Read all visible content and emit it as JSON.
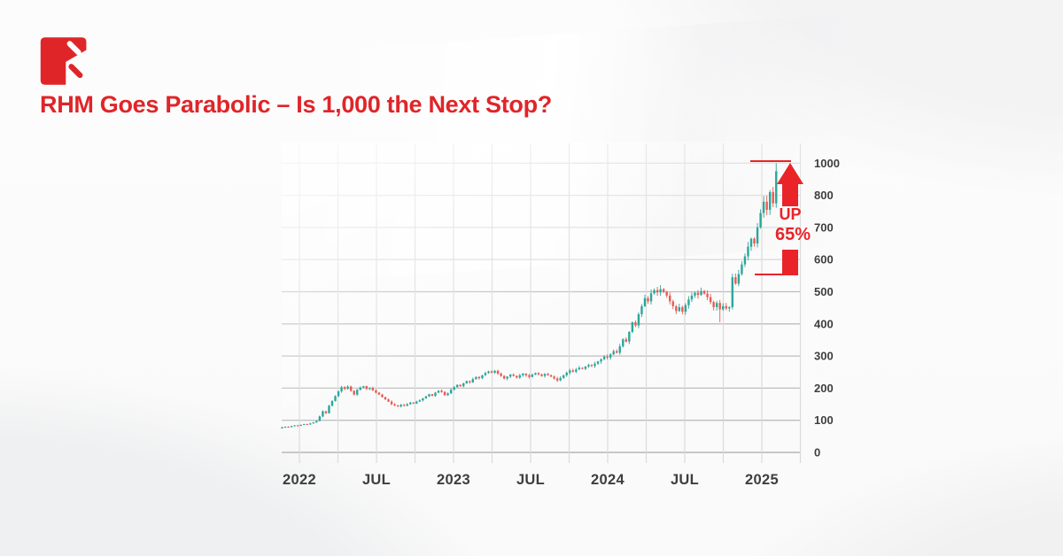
{
  "page": {
    "title": "RHM Goes Parabolic – Is 1,000 the Next Stop?"
  },
  "logo": {
    "name": "brand-mark",
    "color": "#e02529"
  },
  "colors": {
    "title_red": "#e02529",
    "annotation_red": "#ea2328",
    "candle_up": "#2aa79a",
    "candle_down": "#e95b52",
    "axis_text": "#3e3e3e",
    "grid_light": "#dadada",
    "grid_mid": "#bdbdbd",
    "grid_dark": "#a8a8a8"
  },
  "chart_data": {
    "type": "candlestick",
    "title": "RHM Goes Parabolic – Is 1,000 the Next Stop?",
    "xlabel": "",
    "ylabel": "",
    "x_labels": [
      "2022",
      "JUL",
      "2023",
      "JUL",
      "2024",
      "JUL",
      "2025"
    ],
    "y_labels": [
      "1000",
      "800",
      "700",
      "600",
      "500",
      "400",
      "300",
      "200",
      "100",
      "0"
    ],
    "ylim": [
      0,
      1000
    ],
    "grid": true,
    "legend": "none",
    "axis_note": "y-axis tick rows are evenly spaced; the 800-to-1000 step occupies a single row (no 900 label)",
    "annotation": {
      "up_label": "UP",
      "pct_label": "65%",
      "base_level": 550,
      "target_level": 1000
    },
    "candles": {
      "first_open": 75,
      "closes": [
        78,
        80,
        79,
        82,
        84,
        83,
        86,
        88,
        87,
        90,
        93,
        98,
        112,
        128,
        122,
        145,
        160,
        175,
        190,
        203,
        198,
        205,
        192,
        180,
        195,
        202,
        206,
        198,
        200,
        193,
        186,
        180,
        172,
        165,
        158,
        150,
        146,
        143,
        148,
        145,
        150,
        155,
        152,
        158,
        162,
        168,
        174,
        181,
        176,
        186,
        192,
        188,
        178,
        184,
        195,
        203,
        210,
        206,
        215,
        222,
        218,
        228,
        235,
        231,
        240,
        247,
        252,
        248,
        254,
        245,
        238,
        230,
        236,
        242,
        238,
        233,
        240,
        245,
        240,
        235,
        242,
        247,
        243,
        238,
        244,
        240,
        236,
        230,
        224,
        232,
        240,
        248,
        255,
        251,
        258,
        263,
        260,
        267,
        272,
        269,
        276,
        283,
        290,
        298,
        295,
        305,
        315,
        310,
        330,
        352,
        345,
        375,
        405,
        395,
        430,
        455,
        480,
        470,
        495,
        505,
        498,
        508,
        500,
        488,
        470,
        455,
        440,
        452,
        438,
        458,
        476,
        488,
        497,
        490,
        502,
        494,
        483,
        468,
        452,
        465,
        445,
        455,
        448,
        452,
        545,
        525,
        555,
        585,
        610,
        640,
        665,
        650,
        700,
        745,
        780,
        755,
        820,
        775,
        950
      ],
      "specials": {
        "140": {
          "low": 405
        },
        "157": {
          "high": 852
        },
        "158": {
          "high": 1000
        }
      }
    }
  }
}
